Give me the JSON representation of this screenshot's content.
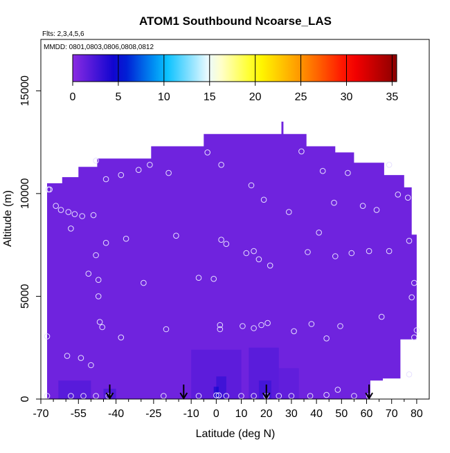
{
  "chart_data": {
    "type": "heatmap",
    "title": "ATOM1 Southbound Ncoarse_LAS",
    "subtitle_flights": "Flts: 2,3,4,5,6",
    "subtitle_dates": "MMDD: 0801,0803,0806,0808,0812",
    "xlabel": "Latitude (deg N)",
    "ylabel": "Altitude (m)",
    "xlim": [
      -70,
      85
    ],
    "ylim": [
      0,
      17500
    ],
    "x_ticks": [
      -70,
      -55,
      -40,
      -25,
      -10,
      0,
      10,
      20,
      30,
      40,
      50,
      60,
      70,
      80
    ],
    "x_minor_ticks": [
      -65,
      -60,
      -50,
      -45,
      -35,
      -30,
      -20,
      -15,
      -5,
      5,
      15,
      25,
      35,
      45,
      55,
      65,
      75
    ],
    "y_ticks": [
      0,
      5000,
      10000,
      15000
    ],
    "colorbar": {
      "ticks": [
        0,
        5,
        10,
        15,
        20,
        25,
        30,
        35
      ],
      "range": [
        0,
        35.5
      ],
      "stops": [
        "#8a2be2",
        "#0000cd",
        "#00bfff",
        "#ffffff",
        "#ffff00",
        "#ff8c00",
        "#ff0000",
        "#8b0000"
      ]
    },
    "background_value": 1.0,
    "coverage_envelope": [
      [
        -67.5,
        0
      ],
      [
        -67.5,
        10500
      ],
      [
        -61.5,
        10500
      ],
      [
        -61.5,
        10800
      ],
      [
        -55,
        10800
      ],
      [
        -55,
        11300
      ],
      [
        -47.5,
        11300
      ],
      [
        -47.5,
        11700
      ],
      [
        -26,
        11700
      ],
      [
        -26,
        12300
      ],
      [
        -5,
        12300
      ],
      [
        -5,
        12900
      ],
      [
        26,
        12900
      ],
      [
        26,
        13500
      ],
      [
        26.8,
        13500
      ],
      [
        26.8,
        12900
      ],
      [
        36,
        12900
      ],
      [
        36,
        12300
      ],
      [
        47.5,
        12300
      ],
      [
        47.5,
        12000
      ],
      [
        55,
        12000
      ],
      [
        55,
        11500
      ],
      [
        67,
        11500
      ],
      [
        67,
        10900
      ],
      [
        75,
        10900
      ],
      [
        75,
        10300
      ],
      [
        78,
        10300
      ],
      [
        78,
        8000
      ],
      [
        80,
        8000
      ],
      [
        80,
        2900
      ],
      [
        73.5,
        2900
      ],
      [
        73.5,
        1000
      ],
      [
        66.5,
        1000
      ],
      [
        66.5,
        900
      ],
      [
        61.5,
        900
      ],
      [
        61.5,
        0
      ]
    ],
    "cells": [
      {
        "x0": -63,
        "x1": -50,
        "y0": 0,
        "y1": 900,
        "v": 2.5
      },
      {
        "x0": -45,
        "x1": -40,
        "y0": 0,
        "y1": 500,
        "v": 3.0
      },
      {
        "x0": -10,
        "x1": 10,
        "y0": 0,
        "y1": 2400,
        "v": 2.2
      },
      {
        "x0": 0,
        "x1": 4,
        "y0": 0,
        "y1": 1100,
        "v": 3.6
      },
      {
        "x0": -1,
        "x1": 1,
        "y0": 0,
        "y1": 600,
        "v": 5.0
      },
      {
        "x0": 13,
        "x1": 25,
        "y0": 0,
        "y1": 2500,
        "v": 2.4
      },
      {
        "x0": 17,
        "x1": 22,
        "y0": 0,
        "y1": 900,
        "v": 3.2
      },
      {
        "x0": 25,
        "x1": 33,
        "y0": 0,
        "y1": 1500,
        "v": 1.9
      }
    ],
    "sample_points": [
      [
        -67,
        10200
      ],
      [
        -66.5,
        10200
      ],
      [
        -64,
        9400
      ],
      [
        -62,
        9200
      ],
      [
        -59,
        9100
      ],
      [
        -56.5,
        9000
      ],
      [
        -53.5,
        8900
      ],
      [
        -49,
        8950
      ],
      [
        -58,
        8300
      ],
      [
        -48,
        11600
      ],
      [
        -44,
        10700
      ],
      [
        -38,
        10900
      ],
      [
        -31,
        11150
      ],
      [
        -26.5,
        11400
      ],
      [
        -19,
        11000
      ],
      [
        2,
        11400
      ],
      [
        -3.5,
        12000
      ],
      [
        34,
        12050
      ],
      [
        42.5,
        11100
      ],
      [
        52.5,
        11000
      ],
      [
        69,
        11400
      ],
      [
        72.5,
        9950
      ],
      [
        76.5,
        9800
      ],
      [
        14,
        10400
      ],
      [
        19,
        9700
      ],
      [
        29,
        9100
      ],
      [
        47,
        9550
      ],
      [
        58.5,
        9400
      ],
      [
        64,
        9200
      ],
      [
        -44,
        7600
      ],
      [
        -36,
        7800
      ],
      [
        -16,
        7950
      ],
      [
        2,
        7750
      ],
      [
        4,
        7550
      ],
      [
        12,
        7100
      ],
      [
        15,
        7200
      ],
      [
        17,
        6800
      ],
      [
        21.5,
        6500
      ],
      [
        36.5,
        7150
      ],
      [
        41,
        8100
      ],
      [
        47.5,
        6950
      ],
      [
        54,
        7100
      ],
      [
        61,
        7200
      ],
      [
        69,
        7200
      ],
      [
        77,
        7700
      ],
      [
        -48,
        7000
      ],
      [
        -51,
        6100
      ],
      [
        -47,
        5800
      ],
      [
        -29,
        5650
      ],
      [
        -7,
        5900
      ],
      [
        -1,
        5850
      ],
      [
        79,
        5650
      ],
      [
        78,
        4950
      ],
      [
        -47,
        5000
      ],
      [
        -46.5,
        3750
      ],
      [
        -45.5,
        3500
      ],
      [
        -38,
        3000
      ],
      [
        -20,
        3400
      ],
      [
        1.5,
        3600
      ],
      [
        1.5,
        3400
      ],
      [
        10.5,
        3550
      ],
      [
        15,
        3450
      ],
      [
        18,
        3600
      ],
      [
        20.5,
        3700
      ],
      [
        31,
        3300
      ],
      [
        38,
        3650
      ],
      [
        44,
        2950
      ],
      [
        49.5,
        3550
      ],
      [
        66,
        4000
      ],
      [
        79,
        3000
      ],
      [
        80,
        3350
      ],
      [
        -67.5,
        3050
      ],
      [
        -59.5,
        2100
      ],
      [
        -54,
        2000
      ],
      [
        -50,
        1650
      ],
      [
        77,
        1200
      ],
      [
        -67.5,
        150
      ],
      [
        -58,
        150
      ],
      [
        -53,
        150
      ],
      [
        -48,
        150
      ],
      [
        -43,
        150
      ],
      [
        -21,
        150
      ],
      [
        -7,
        150
      ],
      [
        0,
        180
      ],
      [
        1,
        180
      ],
      [
        4,
        150
      ],
      [
        10,
        150
      ],
      [
        15,
        150
      ],
      [
        20,
        150
      ],
      [
        25,
        150
      ],
      [
        30,
        150
      ],
      [
        37.5,
        150
      ],
      [
        44,
        200
      ],
      [
        48.5,
        450
      ],
      [
        55,
        150
      ],
      [
        61,
        150
      ]
    ],
    "arrows_x": [
      -42.5,
      -13,
      20,
      61
    ]
  }
}
